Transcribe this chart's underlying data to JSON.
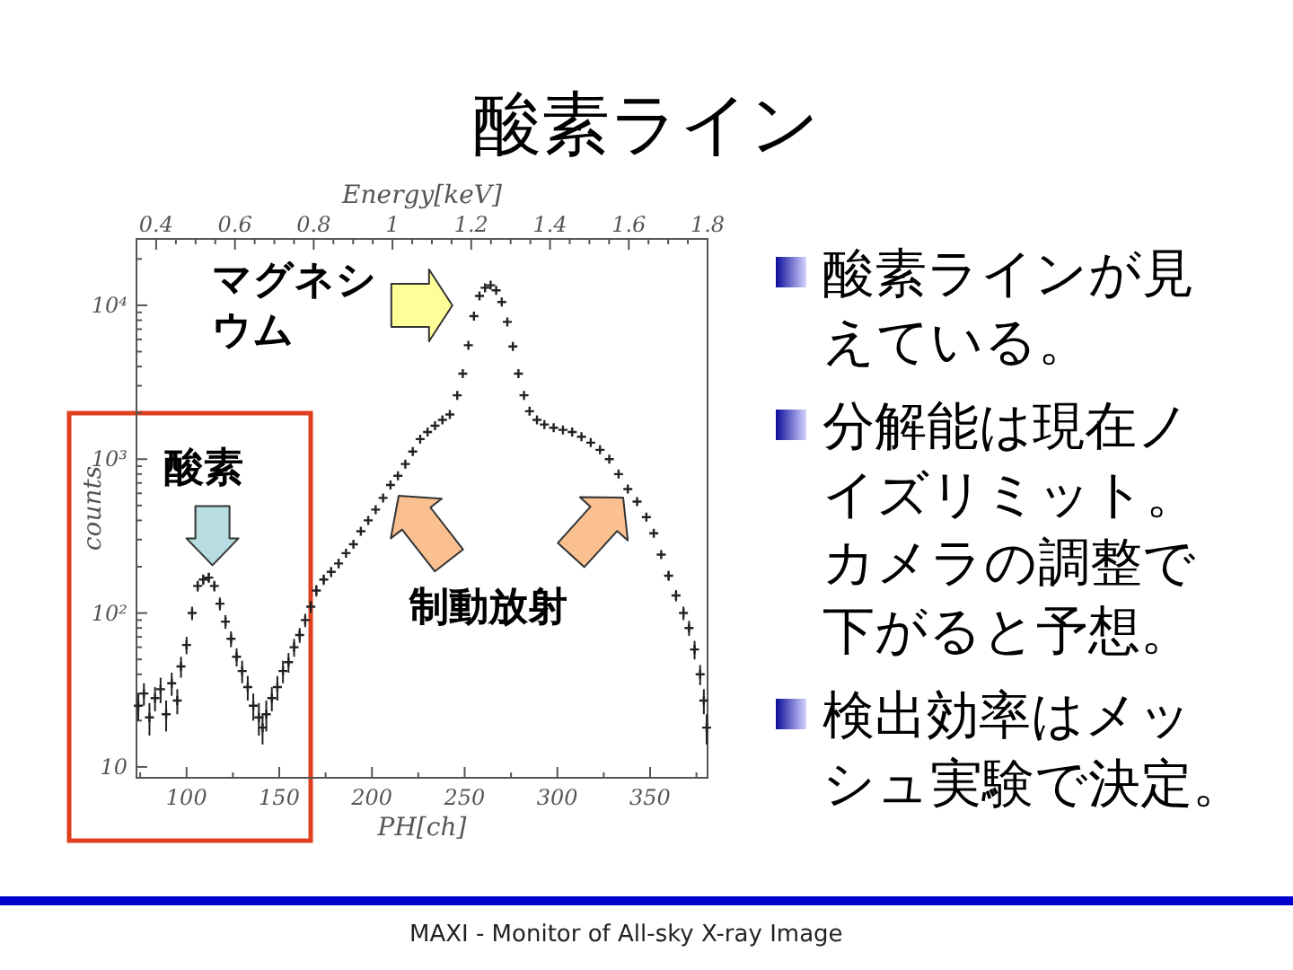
{
  "chart_data": [
    {
      "type": "scatter",
      "title": "酸素ライン",
      "xlabel": "PH[ch]",
      "ylabel": "counts",
      "x2label": "Energy[keV]",
      "color": "#222222",
      "marker": "cross",
      "log": "y",
      "x": [
        74,
        77,
        80,
        83,
        86,
        89,
        92,
        95,
        97,
        100,
        103,
        106,
        109,
        112,
        115,
        118,
        121,
        124,
        127,
        130,
        133,
        136,
        139,
        141,
        143,
        146,
        149,
        152,
        155,
        158,
        161,
        164,
        167,
        170,
        174,
        178,
        182,
        186,
        190,
        194,
        198,
        202,
        206,
        210,
        214,
        218,
        222,
        226,
        230,
        234,
        238,
        242,
        246,
        249,
        252,
        255,
        258,
        261,
        264,
        267,
        270,
        273,
        276,
        279,
        282,
        285,
        289,
        293,
        298,
        303,
        308,
        313,
        318,
        323,
        328,
        333,
        338,
        343,
        348,
        352,
        356,
        360,
        364,
        368,
        371,
        374,
        377,
        379,
        380.5
      ],
      "values": [
        25,
        30,
        21,
        28,
        32,
        22,
        35,
        27,
        45,
        62,
        100,
        150,
        165,
        170,
        150,
        115,
        88,
        68,
        52,
        42,
        33,
        25,
        21,
        18,
        22,
        28,
        33,
        42,
        48,
        60,
        72,
        90,
        110,
        140,
        165,
        185,
        210,
        245,
        280,
        340,
        400,
        470,
        560,
        680,
        780,
        930,
        1120,
        1350,
        1500,
        1650,
        1800,
        1950,
        2600,
        3600,
        5500,
        8500,
        11500,
        13000,
        13500,
        12500,
        10500,
        7800,
        5400,
        3600,
        2600,
        2050,
        1800,
        1680,
        1600,
        1550,
        1500,
        1400,
        1280,
        1150,
        1000,
        800,
        640,
        530,
        420,
        330,
        240,
        175,
        130,
        100,
        80,
        58,
        40,
        27,
        18
      ],
      "errors": [
        5,
        5,
        5,
        5,
        6,
        5,
        6,
        5,
        7,
        8,
        10,
        12,
        13,
        13,
        12,
        11,
        9,
        8,
        7,
        7,
        6,
        5,
        5,
        4,
        5,
        5,
        6,
        7,
        7,
        8,
        8,
        9,
        10,
        12,
        13,
        14,
        15,
        null,
        null,
        null,
        null,
        null,
        null,
        null,
        null,
        null,
        null,
        null,
        null,
        null,
        null,
        null,
        null,
        null,
        null,
        null,
        null,
        null,
        null,
        null,
        null,
        null,
        null,
        null,
        null,
        null,
        null,
        null,
        null,
        null,
        null,
        null,
        null,
        null,
        null,
        null,
        null,
        null,
        null,
        null,
        null,
        13,
        11,
        10,
        9,
        8,
        6,
        5,
        4
      ],
      "xlim": [
        73,
        381
      ],
      "xticks": [
        {
          "value": 75,
          "label": null
        },
        100,
        {
          "value": 125,
          "label": null
        },
        150,
        {
          "value": 175,
          "label": null
        },
        200,
        {
          "value": 225,
          "label": null
        },
        250,
        {
          "value": 275,
          "label": null
        },
        300,
        {
          "value": 325,
          "label": null
        },
        350,
        {
          "value": 375,
          "label": null
        }
      ],
      "ylim": [
        8.5,
        27000
      ],
      "yticks": [
        10,
        {
          "value": 20,
          "label": null
        },
        {
          "value": 30,
          "label": null
        },
        {
          "value": 40,
          "label": null
        },
        {
          "value": 50,
          "label": null
        },
        {
          "value": 60,
          "label": null
        },
        {
          "value": 70,
          "label": null
        },
        {
          "value": 80,
          "label": null
        },
        {
          "value": 90,
          "label": null
        },
        {
          "value": 100,
          "label": "10²"
        },
        {
          "value": 200,
          "label": null
        },
        {
          "value": 300,
          "label": null
        },
        {
          "value": 400,
          "label": null
        },
        {
          "value": 500,
          "label": null
        },
        {
          "value": 600,
          "label": null
        },
        {
          "value": 700,
          "label": null
        },
        {
          "value": 800,
          "label": null
        },
        {
          "value": 900,
          "label": null
        },
        {
          "value": 1000,
          "label": "10³"
        },
        {
          "value": 2000,
          "label": null
        },
        {
          "value": 3000,
          "label": null
        },
        {
          "value": 4000,
          "label": null
        },
        {
          "value": 5000,
          "label": null
        },
        {
          "value": 6000,
          "label": null
        },
        {
          "value": 7000,
          "label": null
        },
        {
          "value": 8000,
          "label": null
        },
        {
          "value": 9000,
          "label": null
        },
        {
          "value": 10000,
          "label": "10⁴"
        },
        {
          "value": 20000,
          "label": null
        }
      ],
      "x2lim": [
        0.35,
        1.8
      ],
      "x2ticks": [
        0.4,
        {
          "value": 0.45,
          "label": null
        },
        {
          "value": 0.5,
          "label": null
        },
        {
          "value": 0.55,
          "label": null
        },
        0.6,
        {
          "value": 0.65,
          "label": null
        },
        {
          "value": 0.7,
          "label": null
        },
        {
          "value": 0.75,
          "label": null
        },
        0.8,
        {
          "value": 0.85,
          "label": null
        },
        {
          "value": 0.9,
          "label": null
        },
        {
          "value": 0.95,
          "label": null
        },
        1,
        {
          "value": 1.05,
          "label": null
        },
        {
          "value": 1.1,
          "label": null
        },
        {
          "value": 1.15,
          "label": null
        },
        1.2,
        {
          "value": 1.25,
          "label": null
        },
        {
          "value": 1.3,
          "label": null
        },
        {
          "value": 1.35,
          "label": null
        },
        1.4,
        {
          "value": 1.45,
          "label": null
        },
        {
          "value": 1.5,
          "label": null
        },
        {
          "value": 1.55,
          "label": null
        },
        1.6,
        {
          "value": 1.65,
          "label": null
        },
        {
          "value": 1.7,
          "label": null
        },
        {
          "value": 1.75,
          "label": null
        },
        1.8
      ],
      "annotations": [
        {
          "text": "マグネシウム",
          "x": 255,
          "y": 10000
        },
        {
          "text": "酸素",
          "x": 112,
          "y": 165
        },
        "制動放射",
        "MAXI - Monitor of All-sky X-ray Image"
      ]
    },
    {
      "type": "other",
      "annotations": [
        "酸素ラインが見えている。",
        "分解能は現在ノイズリミット。カメラの調整で下がると予想。",
        "検出効率はメッシュ実験で決定。"
      ]
    }
  ]
}
